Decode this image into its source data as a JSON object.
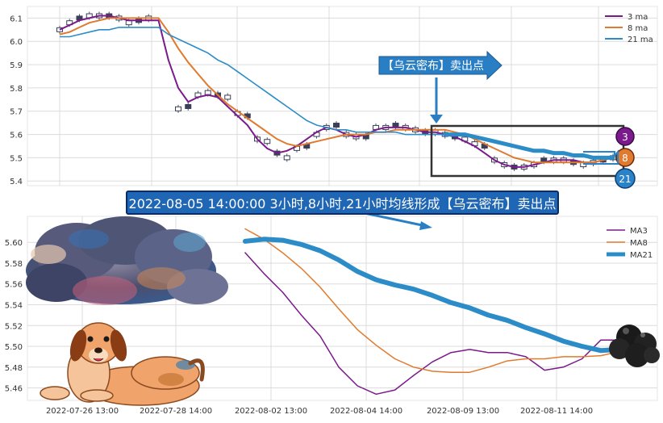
{
  "banner": "2022-08-05 14:00:00 3小时,8小时,21小时均线形成【乌云密布】卖出点",
  "callout": "【乌云密布】卖出点",
  "badges": [
    "3",
    "8",
    "21"
  ],
  "colors": {
    "ma3": "#7b1a8c",
    "ma8": "#e07a2e",
    "ma21": "#2b8cc8",
    "banner": "#1f66b4",
    "grid": "#dcdcdc"
  },
  "chart_data": [
    {
      "type": "line",
      "title": "",
      "legend": {
        "position": "top-right",
        "entries": [
          "3 ma",
          "8 ma",
          "21 ma"
        ]
      },
      "ylim": [
        5.38,
        6.15
      ],
      "y_ticks": [
        "5.4",
        "5.5",
        "5.6",
        "5.7",
        "5.8",
        "5.9",
        "6.0",
        "6.1"
      ],
      "grid": true,
      "candles": [
        [
          0,
          6.05
        ],
        [
          1,
          6.08
        ],
        [
          2,
          6.1
        ],
        [
          3,
          6.11
        ],
        [
          4,
          6.11
        ],
        [
          5,
          6.11
        ],
        [
          6,
          6.1
        ],
        [
          7,
          6.08
        ],
        [
          8,
          6.09
        ],
        [
          9,
          6.1
        ],
        [
          12,
          5.71
        ],
        [
          13,
          5.72
        ],
        [
          14,
          5.77
        ],
        [
          15,
          5.78
        ],
        [
          16,
          5.77
        ],
        [
          17,
          5.76
        ],
        [
          18,
          5.69
        ],
        [
          19,
          5.68
        ],
        [
          20,
          5.58
        ],
        [
          21,
          5.57
        ],
        [
          22,
          5.52
        ],
        [
          23,
          5.5
        ],
        [
          24,
          5.54
        ],
        [
          25,
          5.55
        ],
        [
          26,
          5.6
        ],
        [
          27,
          5.63
        ],
        [
          28,
          5.64
        ],
        [
          29,
          5.6
        ],
        [
          30,
          5.59
        ],
        [
          31,
          5.59
        ],
        [
          32,
          5.63
        ],
        [
          33,
          5.63
        ],
        [
          34,
          5.64
        ],
        [
          35,
          5.63
        ],
        [
          36,
          5.62
        ],
        [
          37,
          5.61
        ],
        [
          38,
          5.61
        ],
        [
          39,
          5.6
        ],
        [
          40,
          5.59
        ],
        [
          41,
          5.58
        ],
        [
          42,
          5.56
        ],
        [
          43,
          5.55
        ],
        [
          44,
          5.49
        ],
        [
          45,
          5.47
        ],
        [
          46,
          5.46
        ],
        [
          47,
          5.46
        ],
        [
          48,
          5.47
        ],
        [
          49,
          5.49
        ],
        [
          50,
          5.49
        ],
        [
          51,
          5.49
        ],
        [
          52,
          5.48
        ],
        [
          53,
          5.47
        ],
        [
          54,
          5.48
        ],
        [
          55,
          5.49
        ],
        [
          56,
          5.5
        ]
      ],
      "series": [
        {
          "name": "3 ma",
          "y": [
            6.05,
            6.07,
            6.09,
            6.1,
            6.11,
            6.11,
            6.1,
            6.09,
            6.09,
            6.09,
            6.09,
            5.92,
            5.8,
            5.74,
            5.76,
            5.77,
            5.76,
            5.72,
            5.68,
            5.64,
            5.58,
            5.54,
            5.52,
            5.53,
            5.55,
            5.58,
            5.61,
            5.63,
            5.62,
            5.6,
            5.59,
            5.6,
            5.62,
            5.63,
            5.63,
            5.63,
            5.62,
            5.61,
            5.61,
            5.6,
            5.59,
            5.57,
            5.55,
            5.52,
            5.49,
            5.47,
            5.46,
            5.46,
            5.47,
            5.48,
            5.49,
            5.49,
            5.49,
            5.48,
            5.48,
            5.49,
            5.5
          ]
        },
        {
          "name": "8 ma",
          "y": [
            6.03,
            6.04,
            6.06,
            6.08,
            6.09,
            6.1,
            6.1,
            6.1,
            6.1,
            6.1,
            6.1,
            6.04,
            5.97,
            5.91,
            5.86,
            5.81,
            5.77,
            5.73,
            5.7,
            5.67,
            5.64,
            5.61,
            5.58,
            5.56,
            5.55,
            5.56,
            5.57,
            5.58,
            5.59,
            5.6,
            5.6,
            5.6,
            5.61,
            5.61,
            5.62,
            5.62,
            5.62,
            5.62,
            5.62,
            5.62,
            5.61,
            5.6,
            5.58,
            5.56,
            5.54,
            5.52,
            5.5,
            5.49,
            5.48,
            5.48,
            5.48,
            5.48,
            5.48,
            5.48,
            5.48,
            5.49,
            5.5
          ]
        },
        {
          "name": "21 ma",
          "y": [
            6.02,
            6.02,
            6.03,
            6.04,
            6.05,
            6.05,
            6.06,
            6.06,
            6.06,
            6.06,
            6.06,
            6.03,
            6.01,
            5.99,
            5.97,
            5.95,
            5.92,
            5.9,
            5.87,
            5.84,
            5.81,
            5.78,
            5.75,
            5.72,
            5.69,
            5.66,
            5.64,
            5.63,
            5.62,
            5.62,
            5.61,
            5.61,
            5.61,
            5.61,
            5.61,
            5.6,
            5.6,
            5.6,
            5.6,
            5.6,
            5.6,
            5.6,
            5.59,
            5.58,
            5.57,
            5.56,
            5.55,
            5.54,
            5.53,
            5.53,
            5.52,
            5.52,
            5.51,
            5.51,
            5.5,
            5.5,
            5.5
          ]
        }
      ]
    },
    {
      "type": "line",
      "title": "",
      "legend": {
        "position": "top-right",
        "entries": [
          "MA3",
          "MA8",
          "MA21"
        ]
      },
      "ylim": [
        5.448,
        5.625
      ],
      "y_ticks": [
        "5.46",
        "5.48",
        "5.50",
        "5.52",
        "5.54",
        "5.56",
        "5.58",
        "5.60"
      ],
      "x_ticks": [
        "2022-07-26 13:00",
        "2022-07-28 14:00",
        "2022-08-02 13:00",
        "2022-08-04 14:00",
        "2022-08-09 13:00",
        "2022-08-11 14:00"
      ],
      "grid": true,
      "series": [
        {
          "name": "MA3",
          "y": [
            5.59,
            5.57,
            5.552,
            5.53,
            5.51,
            5.48,
            5.462,
            5.454,
            5.458,
            5.472,
            5.485,
            5.494,
            5.497,
            5.494,
            5.494,
            5.49,
            5.477,
            5.48,
            5.488,
            5.506,
            5.506
          ]
        },
        {
          "name": "MA8",
          "y": [
            5.613,
            5.603,
            5.59,
            5.575,
            5.557,
            5.536,
            5.516,
            5.501,
            5.488,
            5.48,
            5.476,
            5.475,
            5.475,
            5.48,
            5.486,
            5.488,
            5.488,
            5.49,
            5.49,
            5.491,
            5.495
          ]
        },
        {
          "name": "MA21",
          "y": [
            5.601,
            5.603,
            5.602,
            5.598,
            5.592,
            5.583,
            5.572,
            5.564,
            5.559,
            5.555,
            5.549,
            5.542,
            5.537,
            5.53,
            5.525,
            5.518,
            5.512,
            5.505,
            5.5,
            5.496,
            5.497
          ]
        }
      ]
    }
  ]
}
